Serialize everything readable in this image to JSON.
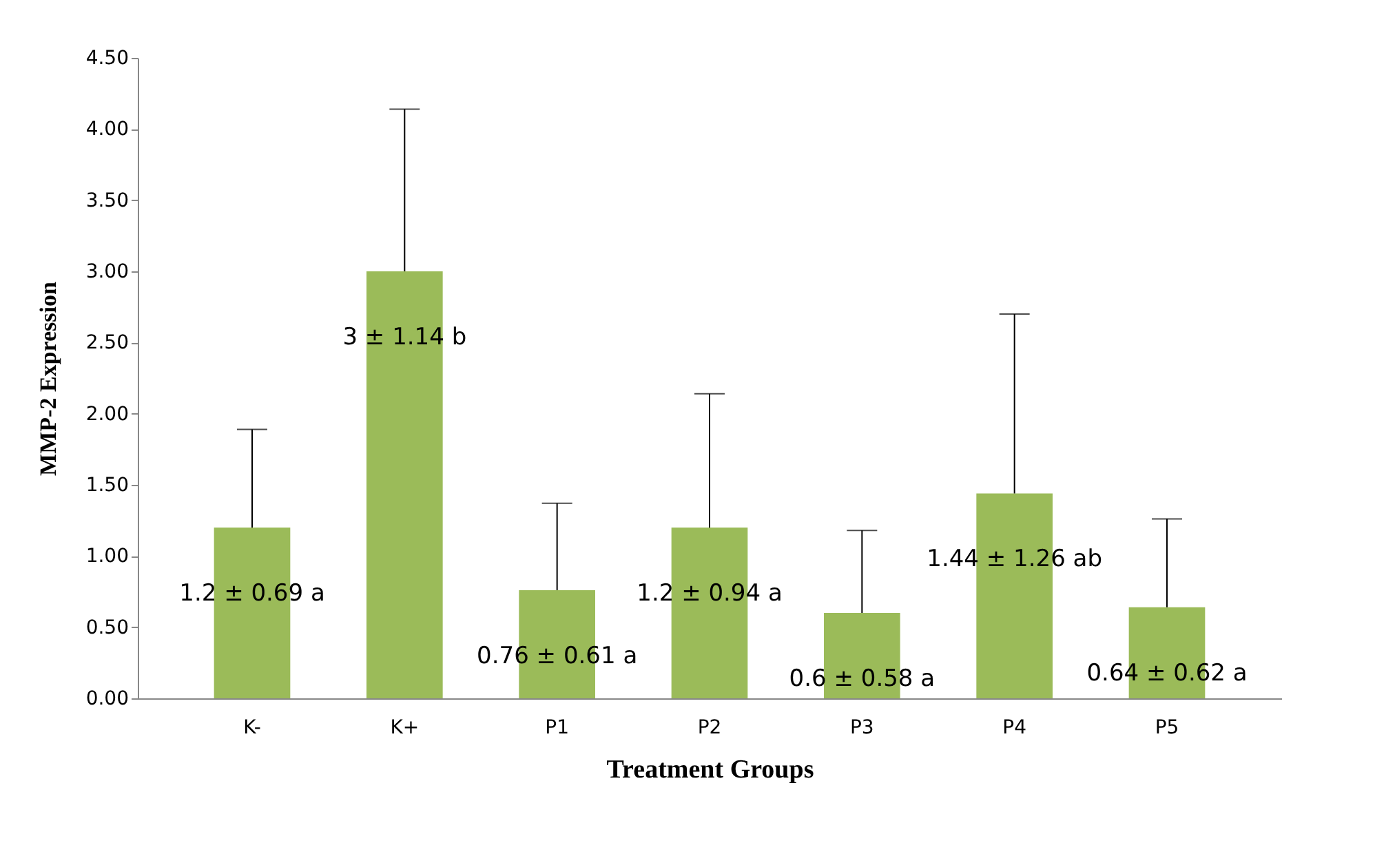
{
  "chart_data": {
    "type": "bar",
    "xlabel": "Treatment Groups",
    "ylabel": "MMP-2 Expression",
    "categories": [
      "K-",
      "K+",
      "P1",
      "P2",
      "P3",
      "P4",
      "P5"
    ],
    "values": [
      1.2,
      3,
      0.76,
      1.2,
      0.6,
      1.44,
      0.64
    ],
    "color": "#9bbb59",
    "errors": [
      [
        1.2,
        1.89
      ],
      [
        3,
        4.14
      ],
      [
        0.76,
        1.37
      ],
      [
        1.2,
        2.14
      ],
      [
        0.6,
        1.18
      ],
      [
        1.44,
        2.7
      ],
      [
        0.64,
        1.26
      ]
    ],
    "value_labels": [
      "1.2 ± 0.69 a",
      "3 ± 1.14 b",
      "0.76 ± 0.61 a",
      "1.2 ± 0.94 a",
      "0.6 ± 0.58 a",
      "1.44 ± 1.26 ab",
      "0.64 ± 0.62 a"
    ],
    "ylim": [
      0,
      4.5
    ],
    "yticks": [
      {
        "value": 0,
        "label": "0.00"
      },
      {
        "value": 0.5,
        "label": "0.50"
      },
      {
        "value": 1,
        "label": "1.00"
      },
      {
        "value": 1.5,
        "label": "1.50"
      },
      {
        "value": 2,
        "label": "2.00"
      },
      {
        "value": 2.5,
        "label": "2.50"
      },
      {
        "value": 3,
        "label": "3.00"
      },
      {
        "value": 3.5,
        "label": "3.50"
      },
      {
        "value": 4,
        "label": "4.00"
      },
      {
        "value": 4.5,
        "label": "4.50"
      }
    ],
    "grid": false
  }
}
